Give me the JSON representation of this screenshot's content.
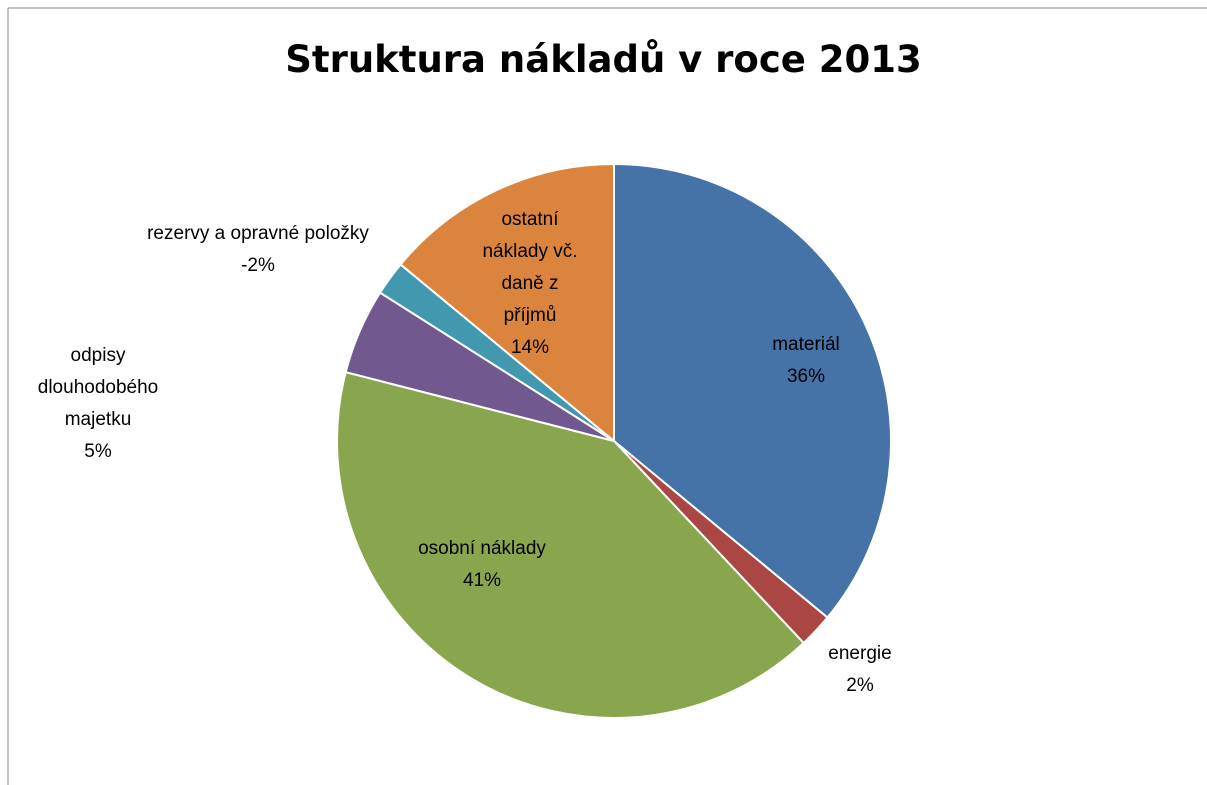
{
  "chart_data": {
    "type": "pie",
    "title": "Struktura nákladů v roce 2013",
    "categories": [
      "materiál",
      "energie",
      "osobní náklady",
      "odpisy dlouhodobého majetku",
      "rezervy a opravné položky",
      "ostatní náklady vč. daně z příjmů"
    ],
    "values": [
      36,
      2,
      41,
      5,
      -2,
      14
    ],
    "value_labels": [
      "36%",
      "2%",
      "41%",
      "5%",
      "-2%",
      "14%"
    ],
    "colors": [
      "#4572a7",
      "#aa4643",
      "#89a54e",
      "#71588f",
      "#4198af",
      "#db843d"
    ]
  }
}
